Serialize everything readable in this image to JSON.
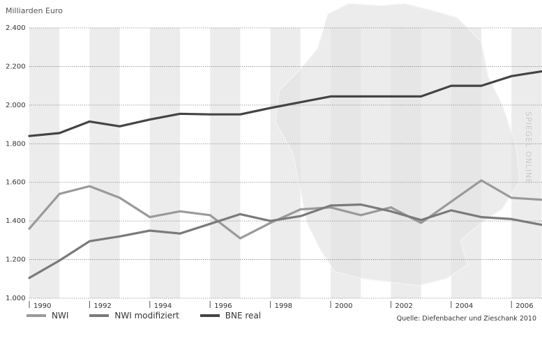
{
  "chart_data": {
    "type": "line",
    "ylabel": "Milliarden Euro",
    "ylim": [
      1000,
      2400
    ],
    "yticks": [
      1000,
      1200,
      1400,
      1600,
      1800,
      2000,
      2200,
      2400
    ],
    "ytick_labels": [
      "1.000",
      "1.200",
      "1.400",
      "1.600",
      "1.800",
      "2.000",
      "2.200",
      "2.400"
    ],
    "x": [
      1990,
      1991,
      1992,
      1993,
      1994,
      1995,
      1996,
      1997,
      1998,
      1999,
      2000,
      2001,
      2002,
      2003,
      2004,
      2005,
      2006,
      2007
    ],
    "xtick_labels": [
      "1990",
      "1992",
      "1994",
      "1996",
      "1998",
      "2000",
      "2002",
      "2004",
      "2006"
    ],
    "grid": true,
    "series": [
      {
        "name": "NWI",
        "color": "#9a9a9a",
        "values": [
          1360,
          1540,
          1580,
          1520,
          1420,
          1450,
          1430,
          1310,
          1390,
          1460,
          1470,
          1430,
          1470,
          1390,
          1500,
          1610,
          1520,
          1510
        ]
      },
      {
        "name": "NWI modifiziert",
        "color": "#7a7a7a",
        "values": [
          1105,
          1195,
          1295,
          1320,
          1350,
          1335,
          1385,
          1435,
          1400,
          1425,
          1480,
          1485,
          1450,
          1405,
          1455,
          1420,
          1410,
          1380
        ]
      },
      {
        "name": "BNE real",
        "color": "#444444",
        "values": [
          1840,
          1855,
          1915,
          1890,
          1925,
          1955,
          1952,
          1952,
          1985,
          2015,
          2045,
          2045,
          2045,
          2045,
          2100,
          2100,
          2150,
          2175
        ]
      }
    ],
    "legend_position": "bottom-left",
    "source": "Quelle: Diefenbacher und Zieschank 2010",
    "watermark": "SPIEGEL ONLINE"
  }
}
